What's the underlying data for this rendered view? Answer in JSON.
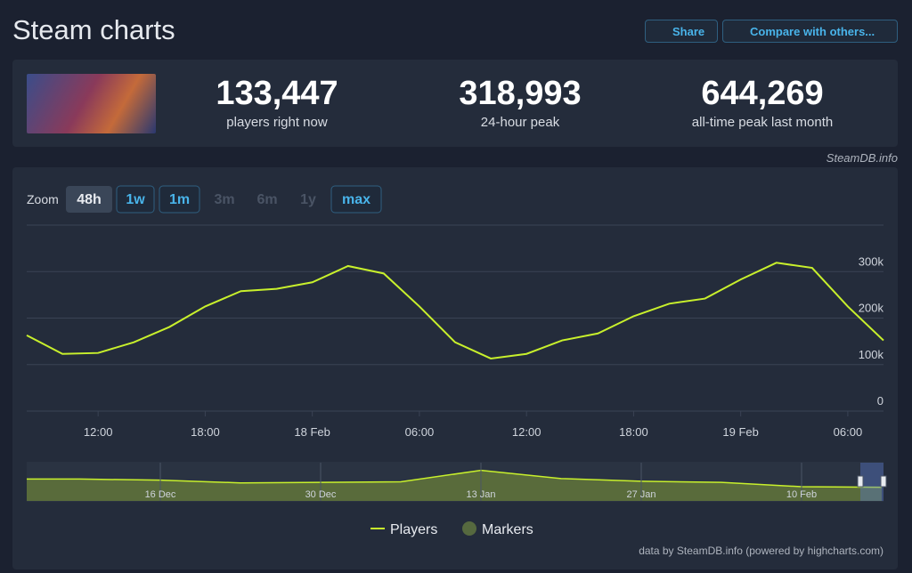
{
  "header": {
    "title": "Steam charts",
    "share": "Share",
    "compare": "Compare with others..."
  },
  "stats": [
    {
      "value": "133,447",
      "label": "players right now"
    },
    {
      "value": "318,993",
      "label": "24-hour peak"
    },
    {
      "value": "644,269",
      "label": "all-time peak last month"
    }
  ],
  "credit": "SteamDB.info",
  "zoom": {
    "label": "Zoom",
    "buttons": [
      {
        "label": "48h",
        "state": "active"
      },
      {
        "label": "1w",
        "state": "enabled"
      },
      {
        "label": "1m",
        "state": "enabled"
      },
      {
        "label": "3m",
        "state": "disabled"
      },
      {
        "label": "6m",
        "state": "disabled"
      },
      {
        "label": "1y",
        "state": "disabled"
      },
      {
        "label": "max",
        "state": "enabled"
      }
    ]
  },
  "chart_data": [
    {
      "type": "line",
      "x": [
        "17 Feb 08:00",
        "17 Feb 10:00",
        "17 Feb 12:00",
        "17 Feb 14:00",
        "17 Feb 16:00",
        "17 Feb 18:00",
        "17 Feb 20:00",
        "17 Feb 22:00",
        "18 Feb 00:00",
        "18 Feb 02:00",
        "18 Feb 04:00",
        "18 Feb 06:00",
        "18 Feb 08:00",
        "18 Feb 10:00",
        "18 Feb 12:00",
        "18 Feb 14:00",
        "18 Feb 16:00",
        "18 Feb 18:00",
        "18 Feb 20:00",
        "18 Feb 22:00",
        "19 Feb 00:00",
        "19 Feb 02:00",
        "19 Feb 04:00",
        "19 Feb 06:00",
        "19 Feb 08:00"
      ],
      "series": [
        {
          "name": "Players",
          "color": "#c8f02c",
          "values": [
            163000,
            123000,
            125000,
            148000,
            181000,
            225000,
            258000,
            263000,
            277000,
            312000,
            296000,
            225000,
            148000,
            113000,
            123000,
            152000,
            167000,
            204000,
            231000,
            242000,
            283000,
            319000,
            308000,
            225000,
            152000
          ]
        }
      ],
      "marker_legend": {
        "name": "Markers",
        "color": "#56693f"
      },
      "ylim": [
        0,
        400000
      ],
      "yticks": [
        0,
        {
          "value": 100000,
          "label": "100k"
        },
        {
          "value": 200000,
          "label": "200k"
        },
        {
          "value": 300000,
          "label": "300k"
        }
      ],
      "xticks": [
        {
          "value": "17 Feb 12:00",
          "label": "12:00"
        },
        {
          "value": "17 Feb 18:00",
          "label": "18:00"
        },
        {
          "value": "18 Feb 00:00",
          "label": "18 Feb"
        },
        {
          "value": "18 Feb 06:00",
          "label": "06:00"
        },
        {
          "value": "18 Feb 12:00",
          "label": "12:00"
        },
        {
          "value": "18 Feb 18:00",
          "label": "18:00"
        },
        {
          "value": "19 Feb 00:00",
          "label": "19 Feb"
        },
        {
          "value": "19 Feb 06:00",
          "label": "06:00"
        }
      ],
      "grid": true,
      "footer": "data by SteamDB.info (powered by highcharts.com)"
    },
    {
      "type": "area",
      "x": [
        "2 Dec",
        "9 Dec",
        "16 Dec",
        "23 Dec",
        "30 Dec",
        "6 Jan",
        "13 Jan",
        "20 Jan",
        "27 Jan",
        "3 Feb",
        "10 Feb",
        "17 Feb"
      ],
      "series": [
        {
          "name": "Players",
          "color": "#c8f02c",
          "values": [
            400000,
            400000,
            380000,
            330000,
            340000,
            350000,
            560000,
            410000,
            360000,
            340000,
            260000,
            250000
          ]
        }
      ],
      "ylim": [
        0,
        700000
      ],
      "xticks": [
        "16 Dec",
        "30 Dec",
        "13 Jan",
        "27 Jan",
        "10 Feb"
      ]
    }
  ]
}
